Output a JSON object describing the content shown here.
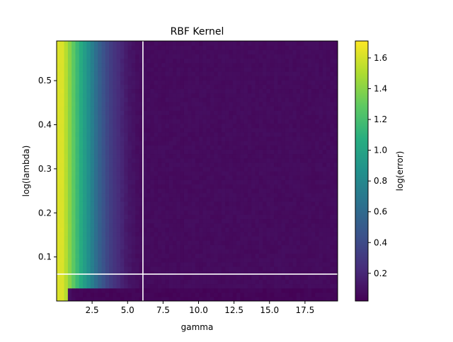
{
  "chart_data": {
    "type": "heatmap",
    "title": "RBF Kernel",
    "xlabel": "gamma",
    "ylabel": "log(lambda)",
    "colorbar_label": "log(error)",
    "colormap": "viridis",
    "xlim": [
      0.0,
      19.8
    ],
    "ylim": [
      0.0,
      0.59
    ],
    "x_ticks": [
      2.5,
      5.0,
      7.5,
      10.0,
      12.5,
      15.0,
      17.5
    ],
    "x_tick_labels": [
      "2.5",
      "5.0",
      "7.5",
      "10.0",
      "12.5",
      "15.0",
      "17.5"
    ],
    "y_ticks": [
      0.1,
      0.2,
      0.3,
      0.4,
      0.5
    ],
    "y_tick_labels": [
      "0.1",
      "0.2",
      "0.3",
      "0.4",
      "0.5"
    ],
    "color_range": [
      0.02,
      1.71
    ],
    "colorbar_ticks": [
      0.2,
      0.4,
      0.6,
      0.8,
      1.0,
      1.2,
      1.4,
      1.6
    ],
    "colorbar_tick_labels": [
      "0.2",
      "0.4",
      "0.6",
      "0.8",
      "1.0",
      "1.2",
      "1.4",
      "1.6"
    ],
    "grid": false,
    "n_columns": 75,
    "n_rows": 60,
    "column_profile": [
      {
        "gamma": 0.13,
        "log_error": 1.62
      },
      {
        "gamma": 0.4,
        "log_error": 1.62
      },
      {
        "gamma": 0.66,
        "log_error": 1.52
      },
      {
        "gamma": 0.92,
        "log_error": 1.4
      },
      {
        "gamma": 1.19,
        "log_error": 1.28
      },
      {
        "gamma": 1.45,
        "log_error": 1.16
      },
      {
        "gamma": 1.72,
        "log_error": 1.05
      },
      {
        "gamma": 1.98,
        "log_error": 0.95
      },
      {
        "gamma": 2.24,
        "log_error": 0.85
      },
      {
        "gamma": 2.51,
        "log_error": 0.74
      },
      {
        "gamma": 2.77,
        "log_error": 0.63
      },
      {
        "gamma": 3.04,
        "log_error": 0.53
      },
      {
        "gamma": 3.3,
        "log_error": 0.45
      },
      {
        "gamma": 3.56,
        "log_error": 0.38
      },
      {
        "gamma": 3.83,
        "log_error": 0.32
      },
      {
        "gamma": 4.09,
        "log_error": 0.27
      },
      {
        "gamma": 4.36,
        "log_error": 0.23
      },
      {
        "gamma": 4.62,
        "log_error": 0.19
      },
      {
        "gamma": 4.88,
        "log_error": 0.15
      },
      {
        "gamma": 5.15,
        "log_error": 0.12
      },
      {
        "gamma": 5.41,
        "log_error": 0.1
      },
      {
        "gamma": 5.68,
        "log_error": 0.08
      },
      {
        "gamma": 6.5,
        "log_error": 0.07
      },
      {
        "gamma": 19.8,
        "log_error": 0.07
      }
    ],
    "low_lambda_dip": {
      "below_log_lambda": 0.03,
      "log_error": 0.04
    },
    "noise_amplitude": 0.03,
    "marker_lines": {
      "vertical_gamma": 6.08,
      "horizontal_log_lambda": 0.061,
      "color": "#ffffff"
    }
  }
}
